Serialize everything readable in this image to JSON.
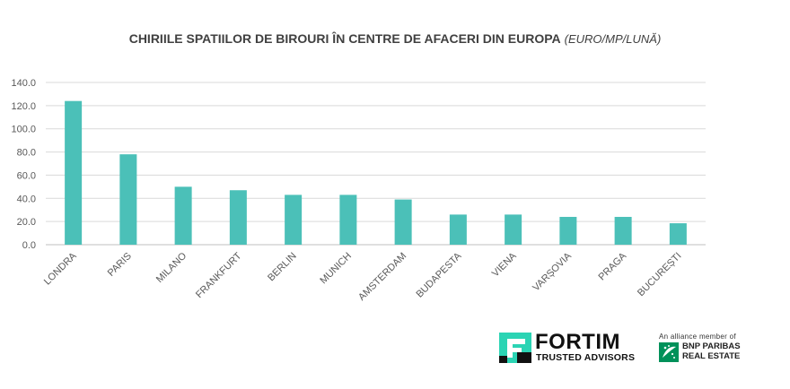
{
  "title": {
    "main": "CHIRIILE SPATIILOR DE BIROURI ÎN CENTRE DE AFACERI DIN EUROPA",
    "unit": "(EURO/MP/LUNĂ)"
  },
  "chart_data": {
    "type": "bar",
    "title": "CHIRIILE SPATIILOR DE BIROURI ÎN CENTRE DE AFACERI DIN EUROPA (EURO/MP/LUNĂ)",
    "categories": [
      "LONDRA",
      "PARIS",
      "MILANO",
      "FRANKFURT",
      "BERLIN",
      "MUNICH",
      "AMSTERDAM",
      "BUDAPESTA",
      "VIENA",
      "VARȘOVIA",
      "PRAGA",
      "BUCUREȘTI"
    ],
    "values": [
      124,
      78,
      50,
      47,
      43,
      43,
      39,
      26,
      26,
      24,
      24,
      18.5
    ],
    "ylim": [
      0,
      140
    ],
    "yticks": [
      "0.0",
      "20.0",
      "40.0",
      "60.0",
      "80.0",
      "100.0",
      "120.0",
      "140.0"
    ],
    "bar_color": "#4bc0b8",
    "grid": true,
    "legend": "none"
  },
  "logos": {
    "fortim_name": "FORTIM",
    "fortim_tagline": "TRUSTED ADVISORS",
    "alliance_text": "An alliance member of",
    "bnp_line1": "BNP PARIBAS",
    "bnp_line2": "REAL ESTATE"
  }
}
